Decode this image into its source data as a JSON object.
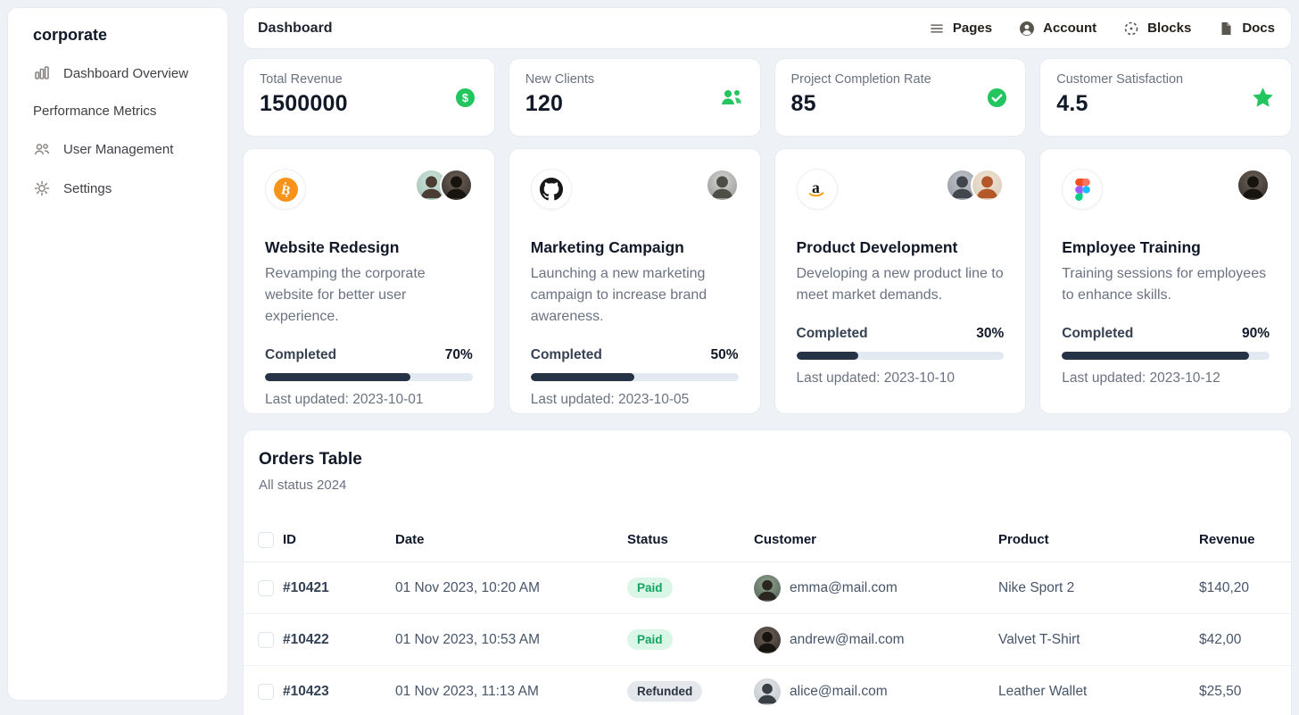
{
  "sidebar": {
    "title": "corporate",
    "items": [
      {
        "label": "Dashboard Overview",
        "icon": "bar-chart-icon"
      },
      {
        "label": "Performance Metrics",
        "icon": ""
      },
      {
        "label": "User Management",
        "icon": "users-icon"
      },
      {
        "label": "Settings",
        "icon": "gear-icon"
      }
    ]
  },
  "topbar": {
    "title": "Dashboard",
    "menu": [
      {
        "label": "Pages",
        "icon": "hamburger-menu-icon"
      },
      {
        "label": "Account",
        "icon": "user-circle-icon"
      },
      {
        "label": "Blocks",
        "icon": "dashed-circle-icon"
      },
      {
        "label": "Docs",
        "icon": "document-icon"
      }
    ]
  },
  "stats": [
    {
      "label": "Total Revenue",
      "value": "1500000",
      "icon": "dollar-circle-icon"
    },
    {
      "label": "New Clients",
      "value": "120",
      "icon": "people-icon"
    },
    {
      "label": "Project Completion Rate",
      "value": "85",
      "icon": "check-circle-icon"
    },
    {
      "label": "Customer Satisfaction",
      "value": "4.5",
      "icon": "star-icon"
    }
  ],
  "projects": [
    {
      "brand": "bitcoin",
      "title": "Website Redesign",
      "description": "Revamping the corporate website for better user experience.",
      "progress_label": "Completed",
      "progress": "70%",
      "last_updated": "Last updated: 2023-10-01",
      "team_size": 2
    },
    {
      "brand": "github",
      "title": "Marketing Campaign",
      "description": "Launching a new marketing campaign to increase brand awareness.",
      "progress_label": "Completed",
      "progress": "50%",
      "last_updated": "Last updated: 2023-10-05",
      "team_size": 1
    },
    {
      "brand": "amazon",
      "title": "Product Development",
      "description": "Developing a new product line to meet market demands.",
      "progress_label": "Completed",
      "progress": "30%",
      "last_updated": "Last updated: 2023-10-10",
      "team_size": 2
    },
    {
      "brand": "figma",
      "title": "Employee Training",
      "description": "Training sessions for employees to enhance skills.",
      "progress_label": "Completed",
      "progress": "90%",
      "last_updated": "Last updated: 2023-10-12",
      "team_size": 1
    }
  ],
  "orders": {
    "title": "Orders Table",
    "subtitle": "All status 2024",
    "columns": {
      "id": "ID",
      "date": "Date",
      "status": "Status",
      "customer": "Customer",
      "product": "Product",
      "revenue": "Revenue"
    },
    "rows": [
      {
        "id": "#10421",
        "date": "01 Nov 2023, 10:20 AM",
        "status": "Paid",
        "customer": "emma@mail.com",
        "product": "Nike Sport 2",
        "revenue": "$140,20"
      },
      {
        "id": "#10422",
        "date": "01 Nov 2023, 10:53 AM",
        "status": "Paid",
        "customer": "andrew@mail.com",
        "product": "Valvet T-Shirt",
        "revenue": "$42,00"
      },
      {
        "id": "#10423",
        "date": "01 Nov 2023, 11:13 AM",
        "status": "Refunded",
        "customer": "alice@mail.com",
        "product": "Leather Wallet",
        "revenue": "$25,50"
      }
    ]
  },
  "colors": {
    "accent_green": "#22c55e",
    "progress_fill": "#263245",
    "paid_badge_bg": "#d9f6e6",
    "paid_badge_text": "#12a463",
    "refunded_badge_bg": "#e4e7ec",
    "refunded_badge_text": "#2b3440",
    "bitcoin_brand": "#f7931a",
    "amazon_smile": "#ff9900",
    "github_brand": "#181717",
    "figma_brand_colors": [
      "#f24e1e",
      "#ff7262",
      "#a259ff",
      "#1abcfe",
      "#0acf83"
    ]
  }
}
